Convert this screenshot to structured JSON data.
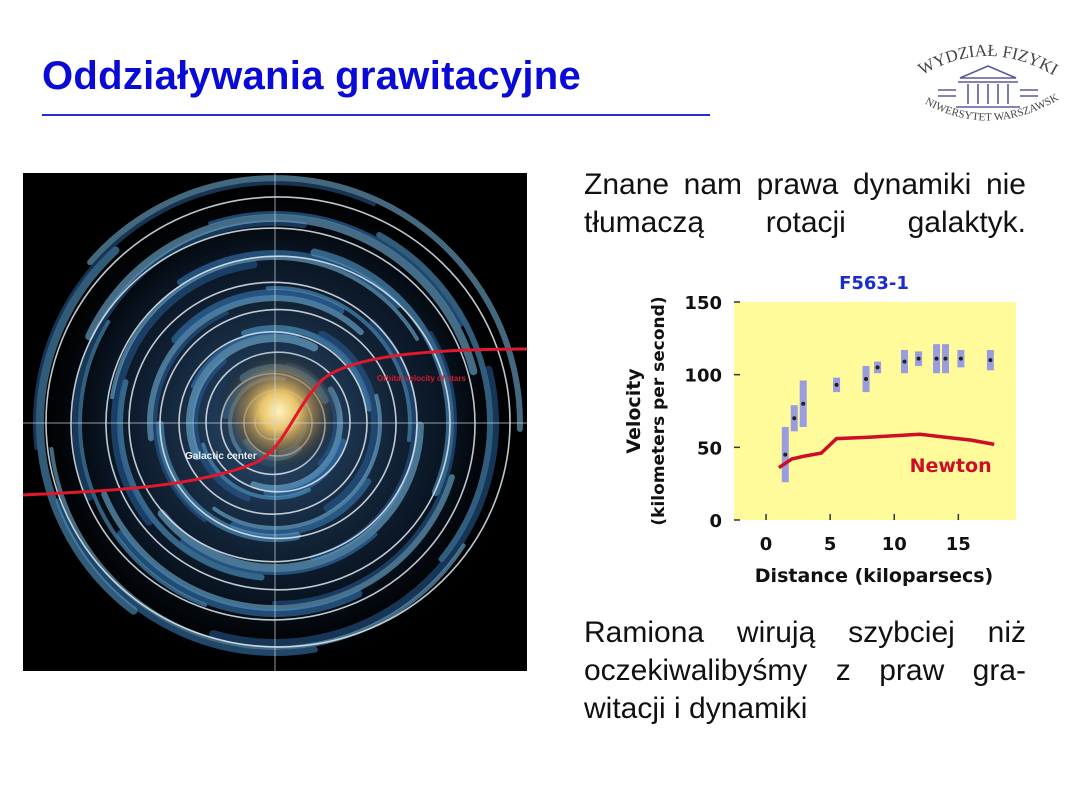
{
  "slide": {
    "title": "Oddziaływania grawitacyjne",
    "paragraph1": "Znane nam prawa dynamiki nie tłumaczą rotacji galaktyk.",
    "paragraph2_lines": [
      "Ramiona wirują szybciej niż",
      "oczekiwalibyśmy z praw gra-",
      "witacji i dynamiki"
    ]
  },
  "logo": {
    "top_text": "WYDZIAŁ FIZYKI",
    "bottom_text": "UNIWERSYTET WARSZAWSKI"
  },
  "galaxy_image": {
    "label_center": "Galactic center",
    "label_curve": "Orbital velocity of stars"
  },
  "chart_data": {
    "type": "scatter",
    "title": "F563-1",
    "xlabel": "Distance (kiloparsecs)",
    "ylabel_line1": "Velocity",
    "ylabel_line2": "(kilometers per second)",
    "xlim": [
      -2.5,
      19.5
    ],
    "ylim": [
      0,
      150
    ],
    "xticks": [
      0,
      5,
      10,
      15
    ],
    "yticks": [
      0,
      50,
      100,
      150
    ],
    "series": [
      {
        "kind": "points",
        "points": [
          {
            "x": 1.5,
            "y": 45,
            "err": 19
          },
          {
            "x": 2.2,
            "y": 70,
            "err": 9
          },
          {
            "x": 2.9,
            "y": 80,
            "err": 16
          },
          {
            "x": 5.5,
            "y": 93,
            "err": 5
          },
          {
            "x": 7.8,
            "y": 97,
            "err": 9
          },
          {
            "x": 8.7,
            "y": 105,
            "err": 4
          },
          {
            "x": 10.8,
            "y": 109,
            "err": 8
          },
          {
            "x": 11.9,
            "y": 111,
            "err": 5
          },
          {
            "x": 13.3,
            "y": 111,
            "err": 10
          },
          {
            "x": 14.0,
            "y": 111,
            "err": 10
          },
          {
            "x": 15.2,
            "y": 111,
            "err": 6
          },
          {
            "x": 17.5,
            "y": 110,
            "err": 7
          }
        ]
      },
      {
        "kind": "line",
        "name": "Newton",
        "x": [
          1.0,
          2.0,
          3.0,
          4.3,
          5.5,
          8.0,
          10.0,
          12.0,
          14.0,
          16.0,
          17.8
        ],
        "y": [
          36,
          42,
          44,
          46,
          56,
          57,
          58,
          59,
          57,
          55,
          52
        ]
      }
    ],
    "colors": {
      "background": "#fffa9a",
      "points": "#222222",
      "errorbars": "#9a9ce0",
      "newton": "#cc0e26",
      "title": "#1a2bd0"
    }
  }
}
